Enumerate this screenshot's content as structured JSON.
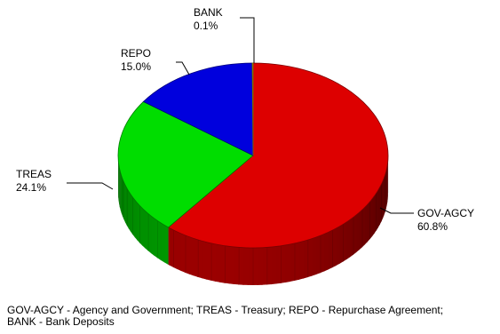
{
  "chart_data": {
    "type": "pie",
    "style": "3d",
    "slices": [
      {
        "code": "GOV-AGCY",
        "value": 60.8,
        "pct": "60.8%",
        "color": "#dd0000"
      },
      {
        "code": "TREAS",
        "value": 24.1,
        "pct": "24.1%",
        "color": "#00dd00"
      },
      {
        "code": "REPO",
        "value": 15.0,
        "pct": "15.0%",
        "color": "#0000dd"
      },
      {
        "code": "BANK",
        "value": 0.1,
        "pct": "0.1%",
        "color": "#d8d000"
      }
    ],
    "footnote": "GOV-AGCY - Agency and Government; TREAS - Treasury; REPO - Repurchase Agreement; BANK - Bank Deposits"
  }
}
